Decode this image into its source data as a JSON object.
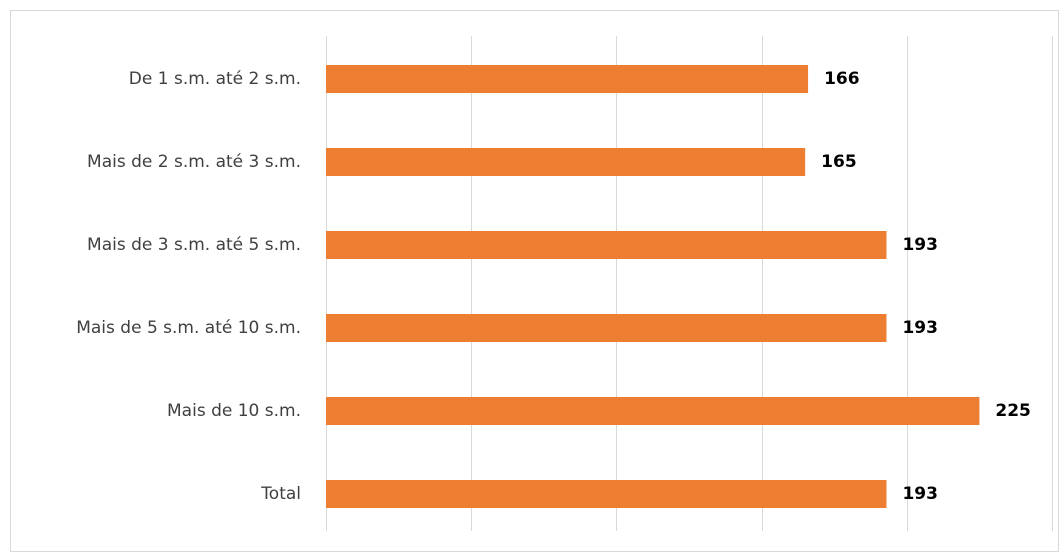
{
  "chart_data": {
    "type": "bar",
    "orientation": "horizontal",
    "categories": [
      "De 1 s.m. até 2 s.m.",
      "Mais de 2 s.m. até 3 s.m.",
      "Mais de 3 s.m. até 5 s.m.",
      "Mais de 5 s.m. até 10 s.m.",
      "Mais de 10 s.m.",
      "Total"
    ],
    "values": [
      166,
      165,
      193,
      193,
      225,
      193
    ],
    "data_labels": [
      "166",
      "165",
      "193",
      "193",
      "225",
      "193"
    ],
    "xlim": [
      0,
      250
    ],
    "grid_major_step": 50,
    "grid": true,
    "legend": false,
    "bar_color": "#ED7D31",
    "grid_color": "#D9D9D9",
    "label_color": "#404040"
  }
}
